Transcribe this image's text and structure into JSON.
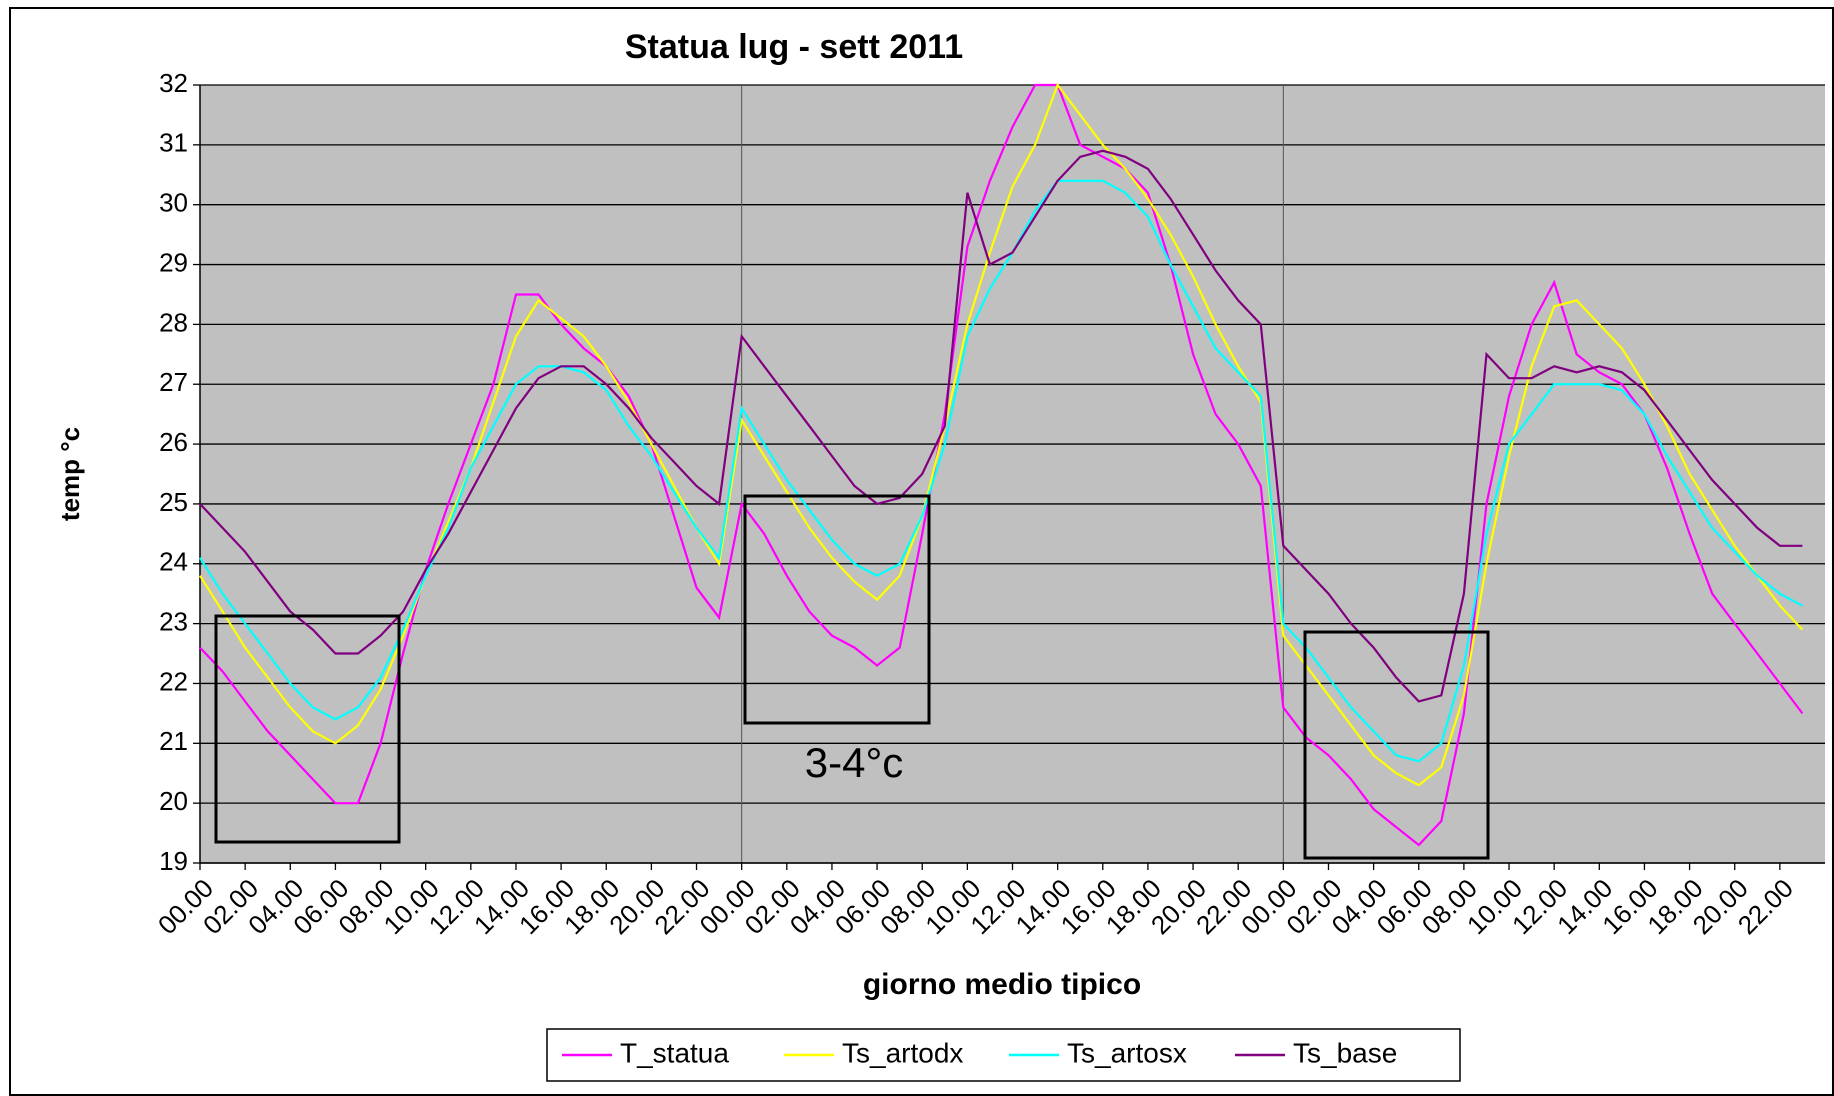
{
  "chart_data": {
    "type": "line",
    "title": "Statua  lug - sett 2011",
    "x_label": "giorno medio tipico",
    "y_label": "temp °c",
    "annotation": "3-4°c",
    "categories": [
      "00.00",
      null,
      "02.00",
      null,
      "04.00",
      null,
      "06.00",
      null,
      "08.00",
      null,
      "10.00",
      null,
      "12.00",
      null,
      "14.00",
      null,
      "16.00",
      null,
      "18.00",
      null,
      "20.00",
      null,
      "22.00",
      null,
      "00.00",
      null,
      "02.00",
      null,
      "04.00",
      null,
      "06.00",
      null,
      "08.00",
      null,
      "10.00",
      null,
      "12.00",
      null,
      "14.00",
      null,
      "16.00",
      null,
      "18.00",
      null,
      "20.00",
      null,
      "22.00",
      null,
      "00.00",
      null,
      "02.00",
      null,
      "04.00",
      null,
      "06.00",
      null,
      "08.00",
      null,
      "10.00",
      null,
      "12.00",
      null,
      "14.00",
      null,
      "16.00",
      null,
      "18.00",
      null,
      "20.00",
      null,
      "22.00",
      null
    ],
    "series": [
      {
        "name": "T_statua",
        "color": "#ff00ff",
        "values": [
          22.6,
          22.2,
          21.7,
          21.2,
          20.8,
          20.4,
          20.0,
          20.0,
          21.0,
          22.5,
          23.9,
          25.0,
          26.0,
          27.0,
          28.5,
          28.5,
          28.0,
          27.6,
          27.3,
          26.8,
          26.0,
          24.8,
          23.6,
          23.1,
          25.0,
          24.5,
          23.8,
          23.2,
          22.8,
          22.6,
          22.3,
          22.6,
          24.5,
          26.5,
          29.3,
          30.4,
          31.3,
          32.0,
          32.0,
          31.0,
          30.8,
          30.6,
          30.2,
          29.0,
          27.5,
          26.5,
          26.0,
          25.3,
          21.6,
          21.1,
          20.8,
          20.4,
          19.9,
          19.6,
          19.3,
          19.7,
          21.5,
          25.0,
          26.8,
          28.0,
          28.7,
          27.5,
          27.2,
          27.0,
          26.5,
          25.6,
          24.5,
          23.5,
          23.0,
          22.5,
          22.0,
          21.5
        ]
      },
      {
        "name": "Ts_artodx",
        "color": "#ffff00",
        "values": [
          23.8,
          23.2,
          22.6,
          22.1,
          21.6,
          21.2,
          21.0,
          21.3,
          21.9,
          22.8,
          23.8,
          24.7,
          25.6,
          26.7,
          27.8,
          28.4,
          28.1,
          27.8,
          27.3,
          26.7,
          26.0,
          25.3,
          24.6,
          24.0,
          26.4,
          25.8,
          25.2,
          24.6,
          24.1,
          23.7,
          23.4,
          23.8,
          24.8,
          26.3,
          28.0,
          29.2,
          30.3,
          31.0,
          32.0,
          31.5,
          31.0,
          30.6,
          30.1,
          29.5,
          28.8,
          28.0,
          27.3,
          26.7,
          22.8,
          22.3,
          21.8,
          21.3,
          20.8,
          20.5,
          20.3,
          20.6,
          21.8,
          24.0,
          25.8,
          27.3,
          28.3,
          28.4,
          28.0,
          27.6,
          27.0,
          26.3,
          25.5,
          24.9,
          24.3,
          23.8,
          23.3,
          22.9
        ]
      },
      {
        "name": "Ts_artosx",
        "color": "#00ffff",
        "values": [
          24.1,
          23.5,
          23.0,
          22.5,
          22.0,
          21.6,
          21.4,
          21.6,
          22.1,
          22.9,
          23.8,
          24.6,
          25.6,
          26.3,
          27.0,
          27.3,
          27.3,
          27.2,
          26.9,
          26.3,
          25.8,
          25.2,
          24.6,
          24.1,
          26.6,
          26.0,
          25.4,
          24.9,
          24.4,
          24.0,
          23.8,
          24.0,
          24.8,
          26.0,
          27.8,
          28.6,
          29.2,
          29.9,
          30.4,
          30.4,
          30.4,
          30.2,
          29.8,
          29.0,
          28.3,
          27.6,
          27.2,
          26.8,
          23.0,
          22.6,
          22.1,
          21.6,
          21.2,
          20.8,
          20.7,
          21.0,
          22.3,
          24.5,
          26.0,
          26.5,
          27.0,
          27.0,
          27.0,
          26.9,
          26.5,
          25.8,
          25.2,
          24.6,
          24.2,
          23.8,
          23.5,
          23.3
        ]
      },
      {
        "name": "Ts_base",
        "color": "#800080",
        "values": [
          25.0,
          24.6,
          24.2,
          23.7,
          23.2,
          22.9,
          22.5,
          22.5,
          22.8,
          23.2,
          23.9,
          24.5,
          25.2,
          25.9,
          26.6,
          27.1,
          27.3,
          27.3,
          27.0,
          26.6,
          26.1,
          25.7,
          25.3,
          25.0,
          27.8,
          27.3,
          26.8,
          26.3,
          25.8,
          25.3,
          25.0,
          25.1,
          25.5,
          26.3,
          30.2,
          29.0,
          29.2,
          29.8,
          30.4,
          30.8,
          30.9,
          30.8,
          30.6,
          30.1,
          29.5,
          28.9,
          28.4,
          28.0,
          24.3,
          23.9,
          23.5,
          23.0,
          22.6,
          22.1,
          21.7,
          21.8,
          23.5,
          27.5,
          27.1,
          27.1,
          27.3,
          27.2,
          27.3,
          27.2,
          26.9,
          26.4,
          25.9,
          25.4,
          25.0,
          24.6,
          24.3,
          24.3
        ]
      }
    ],
    "ylim": [
      19,
      32
    ],
    "yticks": [
      19,
      20,
      21,
      22,
      23,
      24,
      25,
      26,
      27,
      28,
      29,
      30,
      31,
      32
    ],
    "grid": true,
    "legend": "bottom"
  }
}
